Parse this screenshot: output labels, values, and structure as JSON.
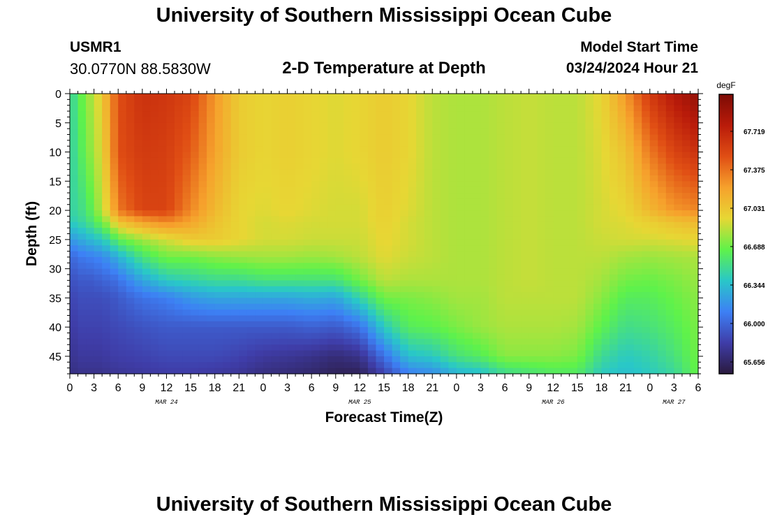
{
  "header": {
    "title": "University of Southern Mississippi Ocean Cube",
    "station_id": "USMR1",
    "coordinates": "30.0770N  88.5830W",
    "subtitle": "2-D Temperature at Depth",
    "model_start_label": "Model Start Time",
    "model_start_value": "03/24/2024 Hour 21"
  },
  "footer": {
    "title": "University of Southern Mississippi Ocean Cube"
  },
  "chart_data": {
    "type": "heatmap",
    "title": "2-D Temperature at Depth",
    "xlabel": "Forecast Time(Z)",
    "ylabel": "Depth (ft)",
    "x_unit": "forecast hour",
    "x_range": [
      0,
      78
    ],
    "y_range": [
      0,
      48
    ],
    "y_inverted": true,
    "x_tick_hours": [
      0,
      3,
      6,
      9,
      12,
      15,
      18,
      21,
      24,
      27,
      30,
      33,
      36,
      39,
      42,
      45,
      48,
      51,
      54,
      57,
      60,
      63,
      66,
      69,
      72,
      75,
      78
    ],
    "x_tick_labels": [
      "0",
      "3",
      "6",
      "9",
      "12",
      "15",
      "18",
      "21",
      "0",
      "3",
      "6",
      "9",
      "12",
      "15",
      "18",
      "21",
      "0",
      "3",
      "6",
      "9",
      "12",
      "15",
      "18",
      "21",
      "0",
      "3",
      "6"
    ],
    "y_ticks": [
      0,
      5,
      10,
      15,
      20,
      25,
      30,
      35,
      40,
      45
    ],
    "day_labels": [
      {
        "label": "MAR 24",
        "hour": 12
      },
      {
        "label": "MAR 25",
        "hour": 36
      },
      {
        "label": "MAR 26",
        "hour": 60
      },
      {
        "label": "MAR 27",
        "hour": 75
      }
    ],
    "colorbar": {
      "unit": "degF",
      "vmin": 65.55,
      "vmax": 68.05,
      "tick_values": [
        67.719,
        67.375,
        67.031,
        66.688,
        66.344,
        66.0,
        65.656
      ],
      "tick_labels": [
        "67.719",
        "67.375",
        "67.031",
        "66.688",
        "66.344",
        "66.000",
        "65.656"
      ],
      "colormap": [
        "#2a1a3e",
        "#3f3da8",
        "#3d80f5",
        "#29c7c8",
        "#5ff24a",
        "#e7d734",
        "#f6a12c",
        "#e04e14",
        "#b91b0a",
        "#7c0b05"
      ]
    },
    "grid": false,
    "depth_levels_ft": [
      0,
      10,
      20,
      22,
      25,
      28,
      32,
      35,
      40,
      45,
      48
    ],
    "columns": [
      {
        "hour": 0,
        "values": [
          66.45,
          66.45,
          66.45,
          66.4,
          66.2,
          66.0,
          65.9,
          65.85,
          65.8,
          65.75,
          65.72
        ]
      },
      {
        "hour": 1,
        "values": [
          66.6,
          66.55,
          66.5,
          66.45,
          66.25,
          66.05,
          65.95,
          65.9,
          65.85,
          65.8,
          65.75
        ]
      },
      {
        "hour": 2,
        "values": [
          66.75,
          66.7,
          66.55,
          66.5,
          66.3,
          66.1,
          65.95,
          65.9,
          65.85,
          65.8,
          65.75
        ]
      },
      {
        "hour": 3,
        "values": [
          66.85,
          66.8,
          66.7,
          66.6,
          66.35,
          66.1,
          65.95,
          65.9,
          65.85,
          65.8,
          65.75
        ]
      },
      {
        "hour": 4,
        "values": [
          67.0,
          66.95,
          66.85,
          66.7,
          66.4,
          66.15,
          66.0,
          65.9,
          65.85,
          65.8,
          65.75
        ]
      },
      {
        "hour": 5,
        "values": [
          67.25,
          67.2,
          67.05,
          66.85,
          66.5,
          66.2,
          66.0,
          65.92,
          65.87,
          65.82,
          65.77
        ]
      },
      {
        "hour": 6,
        "values": [
          67.5,
          67.5,
          67.35,
          67.05,
          66.65,
          66.3,
          66.05,
          65.95,
          65.88,
          65.83,
          65.78
        ]
      },
      {
        "hour": 9,
        "values": [
          67.65,
          67.6,
          67.55,
          67.2,
          66.8,
          66.55,
          66.25,
          66.05,
          65.92,
          65.85,
          65.8
        ]
      },
      {
        "hour": 12,
        "values": [
          67.62,
          67.58,
          67.55,
          67.3,
          66.9,
          66.7,
          66.4,
          66.1,
          65.95,
          65.88,
          65.82
        ]
      },
      {
        "hour": 15,
        "values": [
          67.55,
          67.45,
          67.3,
          67.2,
          67.0,
          66.7,
          66.45,
          66.2,
          65.95,
          65.88,
          65.82
        ]
      },
      {
        "hour": 18,
        "values": [
          67.25,
          67.2,
          67.1,
          67.05,
          67.0,
          66.75,
          66.5,
          66.25,
          65.95,
          65.88,
          65.8
        ]
      },
      {
        "hour": 21,
        "values": [
          67.0,
          67.0,
          66.95,
          66.95,
          66.95,
          66.78,
          66.5,
          66.25,
          65.95,
          65.85,
          65.78
        ]
      },
      {
        "hour": 24,
        "values": [
          66.95,
          66.95,
          66.92,
          66.9,
          66.9,
          66.8,
          66.55,
          66.25,
          65.95,
          65.8,
          65.72
        ]
      },
      {
        "hour": 27,
        "values": [
          66.98,
          66.98,
          66.95,
          66.92,
          66.9,
          66.8,
          66.55,
          66.25,
          65.95,
          65.78,
          65.7
        ]
      },
      {
        "hour": 30,
        "values": [
          66.95,
          66.95,
          66.92,
          66.9,
          66.88,
          66.78,
          66.55,
          66.28,
          65.98,
          65.75,
          65.67
        ]
      },
      {
        "hour": 33,
        "values": [
          66.92,
          66.92,
          66.9,
          66.9,
          66.88,
          66.8,
          66.55,
          66.25,
          65.95,
          65.7,
          65.62
        ]
      },
      {
        "hour": 36,
        "values": [
          66.95,
          66.95,
          66.9,
          66.9,
          66.88,
          66.85,
          66.7,
          66.45,
          66.05,
          65.75,
          65.62
        ]
      },
      {
        "hour": 39,
        "values": [
          67.0,
          67.0,
          66.98,
          66.97,
          66.95,
          66.93,
          66.85,
          66.7,
          66.4,
          66.05,
          65.85
        ]
      },
      {
        "hour": 42,
        "values": [
          66.95,
          66.95,
          66.92,
          66.9,
          66.9,
          66.88,
          66.82,
          66.72,
          66.62,
          66.35,
          66.1
        ]
      },
      {
        "hour": 45,
        "values": [
          66.85,
          66.85,
          66.85,
          66.85,
          66.85,
          66.85,
          66.82,
          66.75,
          66.65,
          66.4,
          66.15
        ]
      },
      {
        "hour": 48,
        "values": [
          66.82,
          66.82,
          66.82,
          66.82,
          66.82,
          66.82,
          66.82,
          66.8,
          66.72,
          66.55,
          66.3
        ]
      },
      {
        "hour": 51,
        "values": [
          66.82,
          66.82,
          66.82,
          66.82,
          66.82,
          66.82,
          66.82,
          66.8,
          66.78,
          66.62,
          66.35
        ]
      },
      {
        "hour": 54,
        "values": [
          66.85,
          66.85,
          66.85,
          66.85,
          66.85,
          66.85,
          66.85,
          66.85,
          66.82,
          66.75,
          66.5
        ]
      },
      {
        "hour": 57,
        "values": [
          66.87,
          66.87,
          66.87,
          66.87,
          66.87,
          66.87,
          66.87,
          66.85,
          66.82,
          66.75,
          66.55
        ]
      },
      {
        "hour": 60,
        "values": [
          66.85,
          66.85,
          66.85,
          66.85,
          66.85,
          66.85,
          66.85,
          66.85,
          66.82,
          66.75,
          66.6
        ]
      },
      {
        "hour": 63,
        "values": [
          66.85,
          66.85,
          66.85,
          66.85,
          66.85,
          66.85,
          66.85,
          66.85,
          66.8,
          66.72,
          66.6
        ]
      },
      {
        "hour": 66,
        "values": [
          66.95,
          66.92,
          66.9,
          66.9,
          66.88,
          66.85,
          66.8,
          66.75,
          66.65,
          66.5,
          66.4
        ]
      },
      {
        "hour": 69,
        "values": [
          67.25,
          67.05,
          66.95,
          66.92,
          66.9,
          66.8,
          66.7,
          66.62,
          66.52,
          66.4,
          66.35
        ]
      },
      {
        "hour": 72,
        "values": [
          67.6,
          67.35,
          67.1,
          66.98,
          66.9,
          66.78,
          66.68,
          66.62,
          66.55,
          66.45,
          66.4
        ]
      },
      {
        "hour": 75,
        "values": [
          67.8,
          67.55,
          67.25,
          67.05,
          66.92,
          66.8,
          66.72,
          66.68,
          66.62,
          66.55,
          66.48
        ]
      },
      {
        "hour": 78,
        "values": [
          67.95,
          67.65,
          67.3,
          67.1,
          66.95,
          66.82,
          66.78,
          66.75,
          66.72,
          66.7,
          66.68
        ]
      }
    ]
  }
}
